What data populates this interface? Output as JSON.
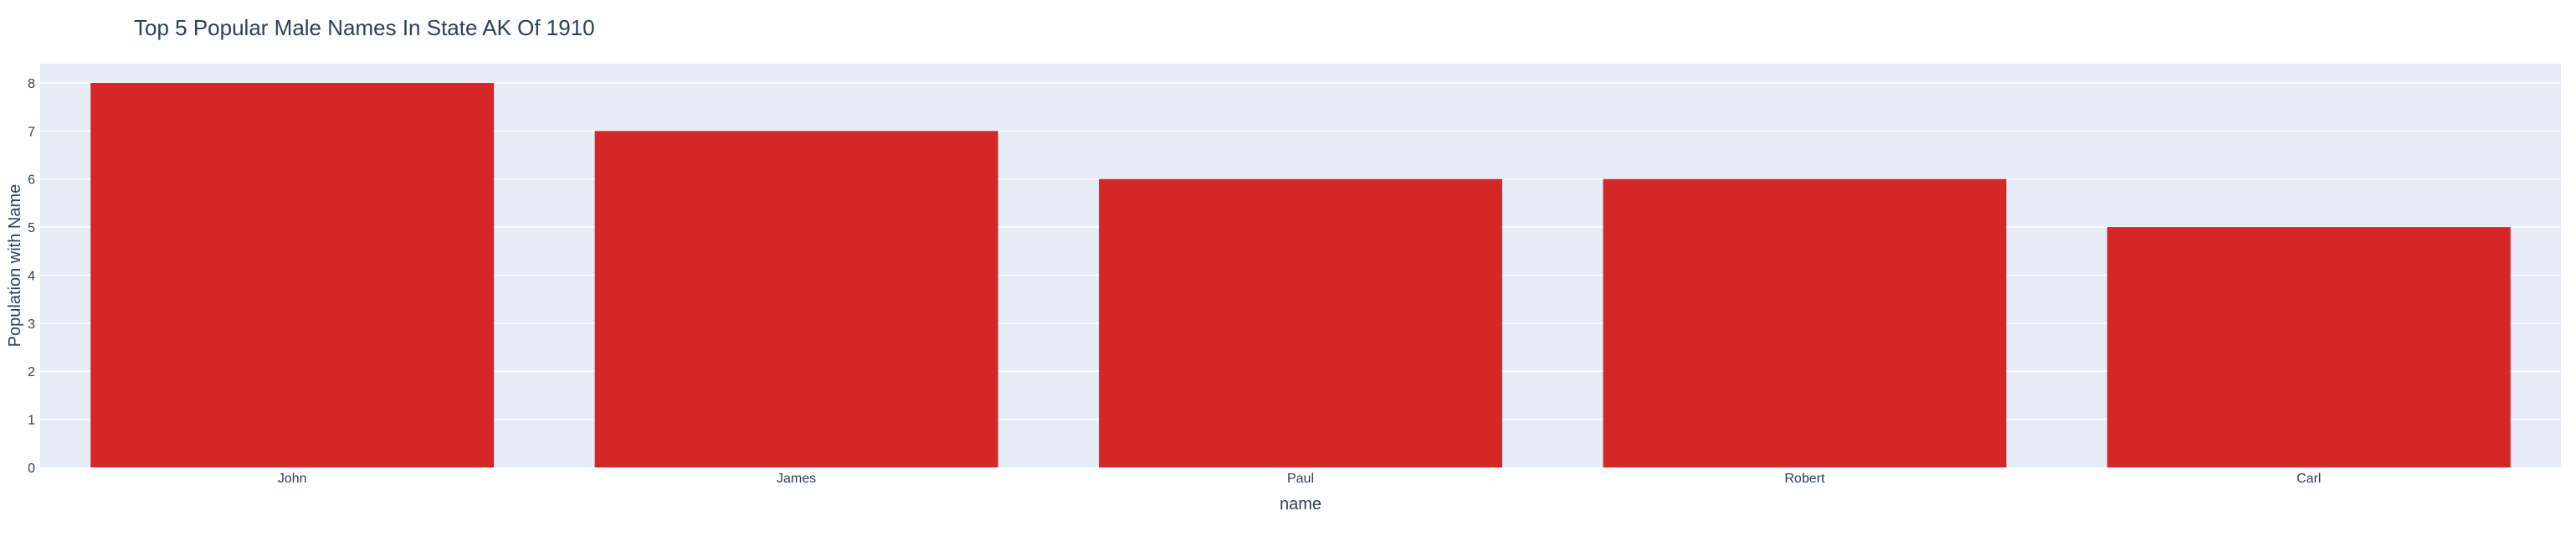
{
  "chart_data": {
    "type": "bar",
    "title": "Top 5 Popular Male Names In State AK Of 1910",
    "xlabel": "name",
    "ylabel": "Population with Name",
    "categories": [
      "John",
      "James",
      "Paul",
      "Robert",
      "Carl"
    ],
    "values": [
      8,
      7,
      6,
      6,
      5
    ],
    "ylim": [
      0,
      8.4
    ],
    "yticks": [
      0,
      1,
      2,
      3,
      4,
      5,
      6,
      7,
      8
    ],
    "grid": true,
    "legend": "none",
    "colors": {
      "bar": "#d62728",
      "plot_background": "#e5ecf6",
      "grid": "#ffffff",
      "text": "#2a3f5f"
    }
  }
}
